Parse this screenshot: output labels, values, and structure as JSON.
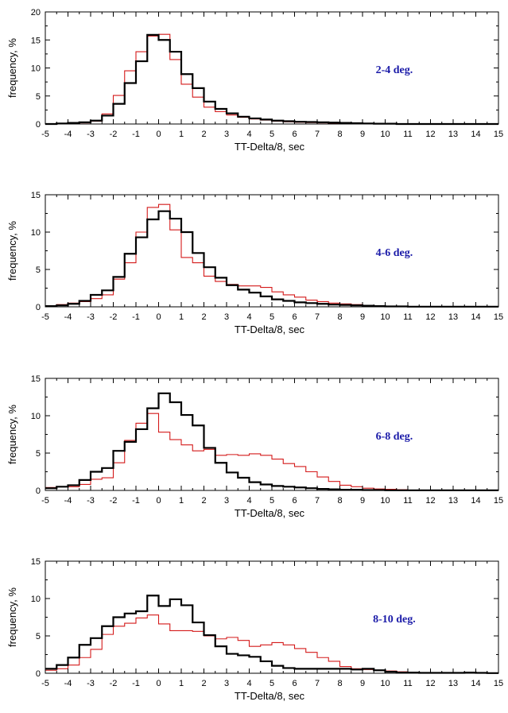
{
  "colors": {
    "black_series": "#000000",
    "red_series": "#d41a1a",
    "panel_label": "#1a1aa8"
  },
  "chart_data": [
    {
      "type": "histogram-step",
      "label": "2-4 deg.",
      "xlabel": "TT-Delta/8, sec",
      "ylabel": "frequency, %",
      "xlim": [
        -5,
        15
      ],
      "ylim": [
        0,
        20
      ],
      "x_ticks": [
        "-5",
        "-4",
        "-3",
        "-2",
        "-1",
        "0",
        "1",
        "2",
        "3",
        "4",
        "5",
        "6",
        "7",
        "8",
        "9",
        "10",
        "11",
        "12",
        "13",
        "14",
        "15"
      ],
      "y_ticks": [
        "0",
        "5",
        "10",
        "15",
        "20"
      ],
      "bin_start": -5,
      "bin_width": 0.5,
      "series": [
        {
          "color": "#000000",
          "values": [
            0,
            0.1,
            0.2,
            0.3,
            0.6,
            1.5,
            3.6,
            7.3,
            11.2,
            15.9,
            15.0,
            12.9,
            8.9,
            6.4,
            4.0,
            2.7,
            1.9,
            1.3,
            1.0,
            0.8,
            0.6,
            0.5,
            0.4,
            0.35,
            0.3,
            0.25,
            0.2,
            0.15,
            0.1,
            0.05,
            0.05,
            0,
            0,
            0,
            0,
            0,
            0,
            0,
            0,
            0
          ]
        },
        {
          "color": "#d41a1a",
          "values": [
            0,
            0.05,
            0.1,
            0.2,
            0.5,
            1.8,
            5.1,
            9.5,
            12.9,
            15.7,
            16.0,
            11.5,
            7.1,
            4.8,
            3.0,
            2.2,
            1.6,
            1.2,
            0.9,
            0.7,
            0.5,
            0.4,
            0.3,
            0.25,
            0.2,
            0.15,
            0.1,
            0.05,
            0,
            0,
            0,
            0,
            0,
            0,
            0,
            0,
            0,
            0,
            0,
            0
          ]
        }
      ]
    },
    {
      "type": "histogram-step",
      "label": "4-6 deg.",
      "xlabel": "TT-Delta/8, sec",
      "ylabel": "frequency, %",
      "xlim": [
        -5,
        15
      ],
      "ylim": [
        0,
        15
      ],
      "x_ticks": [
        "-5",
        "-4",
        "-3",
        "-2",
        "-1",
        "0",
        "1",
        "2",
        "3",
        "4",
        "5",
        "6",
        "7",
        "8",
        "9",
        "10",
        "11",
        "12",
        "13",
        "14",
        "15"
      ],
      "y_ticks": [
        "0",
        "5",
        "10",
        "15"
      ],
      "bin_start": -5,
      "bin_width": 0.5,
      "series": [
        {
          "color": "#000000",
          "values": [
            0.1,
            0.2,
            0.4,
            0.8,
            1.6,
            2.2,
            4.0,
            7.1,
            9.3,
            11.7,
            12.8,
            11.8,
            10.0,
            7.2,
            5.3,
            3.9,
            2.9,
            2.3,
            1.9,
            1.4,
            1.0,
            0.8,
            0.6,
            0.5,
            0.4,
            0.3,
            0.25,
            0.2,
            0.15,
            0.1,
            0.05,
            0.05,
            0.02,
            0.02,
            0.02,
            0.02,
            0.02,
            0.02,
            0.02,
            0.02
          ]
        },
        {
          "color": "#d41a1a",
          "values": [
            0.15,
            0.3,
            0.5,
            0.7,
            1.1,
            1.6,
            3.7,
            5.9,
            10.0,
            13.3,
            13.7,
            10.3,
            6.6,
            5.9,
            4.1,
            3.4,
            3.0,
            2.8,
            2.8,
            2.6,
            2.0,
            1.6,
            1.3,
            0.9,
            0.7,
            0.5,
            0.4,
            0.3,
            0.2,
            0.1,
            0.05,
            0.05,
            0.02,
            0.02,
            0.02,
            0.02,
            0.02,
            0.02,
            0.02,
            0.02
          ]
        }
      ]
    },
    {
      "type": "histogram-step",
      "label": "6-8 deg.",
      "xlabel": "TT-Delta/8, sec",
      "ylabel": "frequency, %",
      "xlim": [
        -5,
        15
      ],
      "ylim": [
        0,
        15
      ],
      "x_ticks": [
        "-5",
        "-4",
        "-3",
        "-2",
        "-1",
        "0",
        "1",
        "2",
        "3",
        "4",
        "5",
        "6",
        "7",
        "8",
        "9",
        "10",
        "11",
        "12",
        "13",
        "14",
        "15"
      ],
      "y_ticks": [
        "0",
        "5",
        "10",
        "15"
      ],
      "bin_start": -5,
      "bin_width": 0.5,
      "series": [
        {
          "color": "#000000",
          "values": [
            0.3,
            0.5,
            0.7,
            1.4,
            2.5,
            3.0,
            5.3,
            6.5,
            8.2,
            11.0,
            13.0,
            11.8,
            10.1,
            8.7,
            5.7,
            3.7,
            2.4,
            1.7,
            1.1,
            0.8,
            0.6,
            0.5,
            0.4,
            0.3,
            0.2,
            0.15,
            0.1,
            0.1,
            0.05,
            0.05,
            0.02,
            0.02,
            0.02,
            0.02,
            0.02,
            0.02,
            0.02,
            0.02,
            0.02,
            0.02
          ]
        },
        {
          "color": "#d41a1a",
          "values": [
            0.4,
            0.5,
            0.5,
            0.8,
            1.5,
            1.7,
            3.7,
            6.7,
            9.0,
            10.3,
            7.8,
            6.8,
            6.1,
            5.3,
            5.5,
            4.7,
            4.8,
            4.7,
            4.9,
            4.7,
            4.2,
            3.6,
            3.2,
            2.5,
            1.8,
            1.2,
            0.7,
            0.5,
            0.3,
            0.2,
            0.15,
            0.1,
            0.05,
            0.05,
            0.02,
            0.02,
            0.02,
            0.02,
            0.02,
            0.02
          ]
        }
      ]
    },
    {
      "type": "histogram-step",
      "label": "8-10 deg.",
      "xlabel": "TT-Delta/8, sec",
      "ylabel": "frequency, %",
      "xlim": [
        -5,
        15
      ],
      "ylim": [
        0,
        15
      ],
      "x_ticks": [
        "-5",
        "-4",
        "-3",
        "-2",
        "-1",
        "0",
        "1",
        "2",
        "3",
        "4",
        "5",
        "6",
        "7",
        "8",
        "9",
        "10",
        "11",
        "12",
        "13",
        "14",
        "15"
      ],
      "y_ticks": [
        "0",
        "5",
        "10",
        "15"
      ],
      "bin_start": -5,
      "bin_width": 0.5,
      "series": [
        {
          "color": "#000000",
          "values": [
            0.6,
            1.1,
            2.1,
            3.8,
            4.7,
            6.3,
            7.5,
            8.0,
            8.3,
            10.4,
            9.0,
            9.9,
            9.1,
            6.8,
            5.1,
            3.6,
            2.6,
            2.4,
            2.2,
            1.6,
            1.0,
            0.7,
            0.6,
            0.6,
            0.6,
            0.6,
            0.6,
            0.5,
            0.6,
            0.4,
            0.2,
            0.1,
            0.1,
            0.05,
            0.05,
            0.05,
            0.05,
            0.1,
            0.05,
            0.02
          ]
        },
        {
          "color": "#d41a1a",
          "values": [
            0.4,
            0.6,
            1.1,
            2.1,
            3.2,
            5.2,
            6.3,
            6.7,
            7.4,
            7.8,
            6.6,
            5.7,
            5.7,
            5.6,
            5.0,
            4.6,
            4.8,
            4.4,
            3.6,
            3.8,
            4.1,
            3.8,
            3.3,
            2.8,
            2.1,
            1.6,
            0.9,
            0.6,
            0.5,
            0.4,
            0.3,
            0.2,
            0.1,
            0.05,
            0.05,
            0.02,
            0.02,
            0.02,
            0.02,
            0.02
          ]
        }
      ]
    }
  ]
}
